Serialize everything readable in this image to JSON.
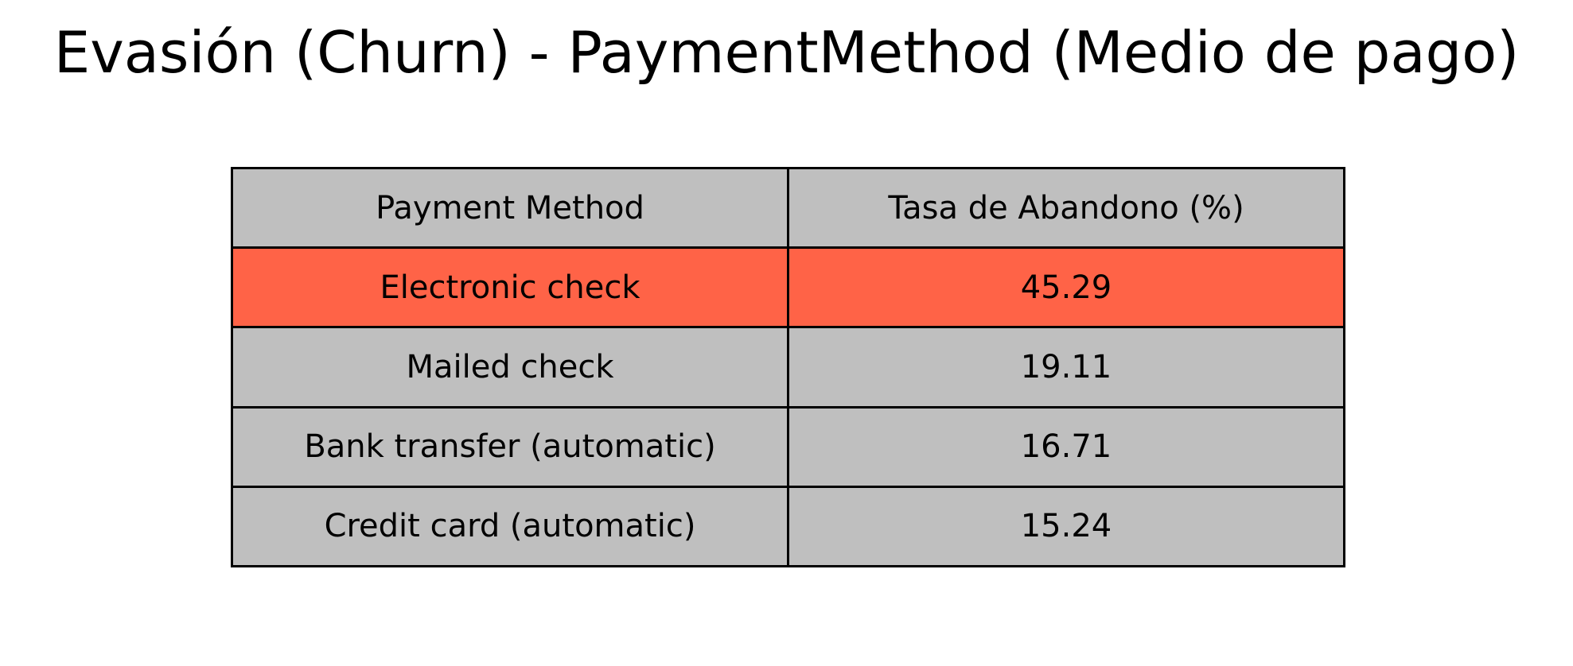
{
  "chart_data": {
    "type": "table",
    "title": "Evasión (Churn) - PaymentMethod (Medio de pago)",
    "columns": [
      "Payment Method",
      "Tasa de Abandono (%)"
    ],
    "rows": [
      {
        "method": "Electronic check",
        "rate": "45.29",
        "highlight": true
      },
      {
        "method": "Mailed check",
        "rate": "19.11",
        "highlight": false
      },
      {
        "method": "Bank transfer (automatic)",
        "rate": "16.71",
        "highlight": false
      },
      {
        "method": "Credit card (automatic)",
        "rate": "15.24",
        "highlight": false
      }
    ]
  },
  "colors": {
    "cell_background": "#bfbfbf",
    "highlight_background": "#ff6347",
    "border": "#000000"
  }
}
